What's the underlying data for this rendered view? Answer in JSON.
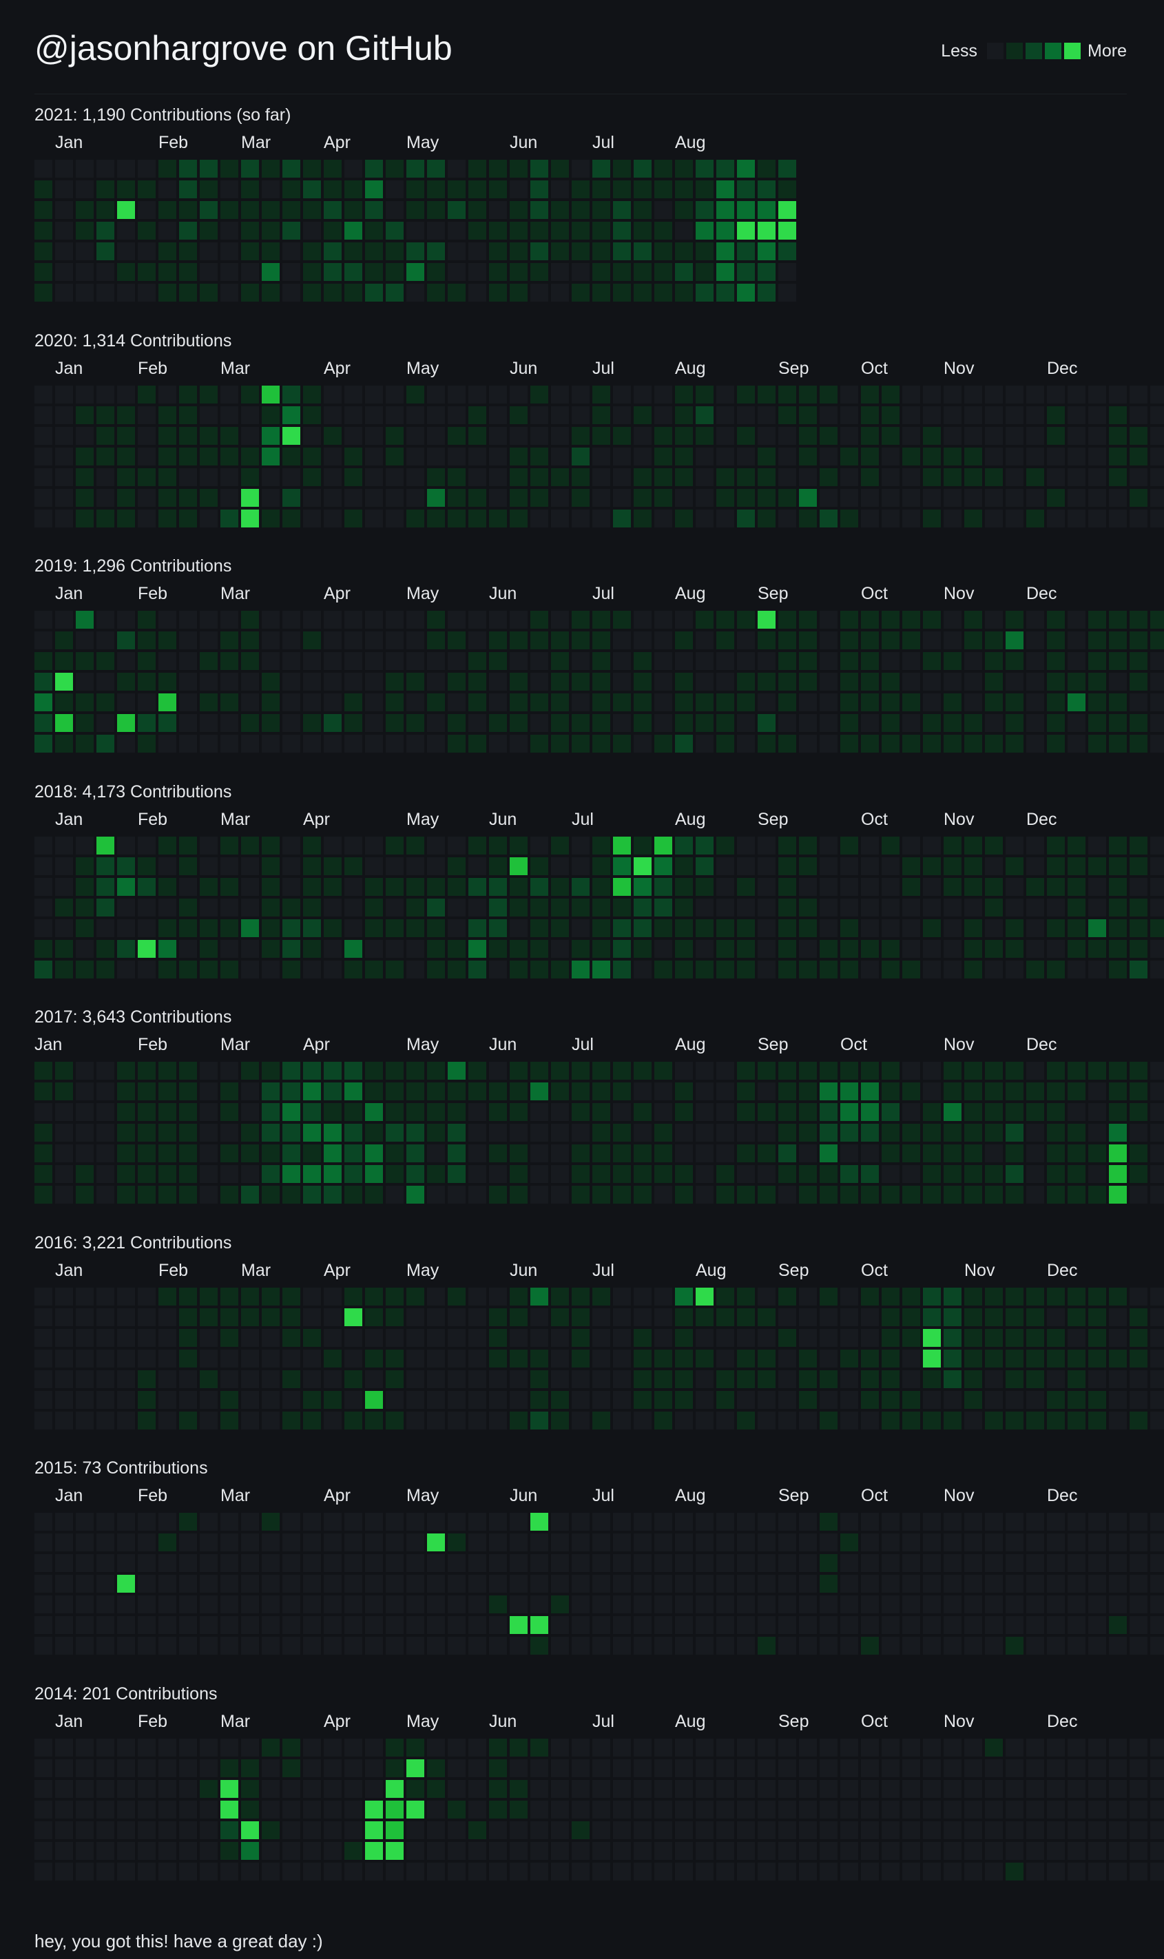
{
  "header": {
    "title": "@jasonhargrove on GitHub",
    "legend": {
      "less": "Less",
      "more": "More"
    }
  },
  "colors": {
    "background": "#111317",
    "levels": [
      "#171a1f",
      "#0c2d1a",
      "#0a4625",
      "#087031",
      "#1fc03a",
      "#2fda4a"
    ]
  },
  "years": [
    {
      "title": "2021: 1,190 Contributions (so far)",
      "months": [
        {
          "label": "Jan",
          "week": 1
        },
        {
          "label": "Feb",
          "week": 6
        },
        {
          "label": "Mar",
          "week": 10
        },
        {
          "label": "Apr",
          "week": 14
        },
        {
          "label": "May",
          "week": 18
        },
        {
          "label": "Jun",
          "week": 23
        },
        {
          "label": "Jul",
          "week": 27
        },
        {
          "label": "Aug",
          "week": 31
        }
      ],
      "weeks": [
        "0111111",
        "0000000",
        "0011000",
        "0112200",
        "0150010",
        "0101010",
        "1010111",
        "2212111",
        "2121001",
        "1010000",
        "2111101",
        "1011131",
        "2112000",
        "1210111",
        "1121221",
        "0113121",
        "2321112",
        "1002112",
        "2110230",
        "2110211",
        "0120001",
        "1111000",
        "1101111",
        "1011111",
        "2221210",
        "1011100",
        "0111101",
        "2111111",
        "1122211",
        "2111211",
        "1101111",
        "1110121",
        "2123112",
        "2333332",
        "3235223",
        "1235322",
        "2155200"
      ]
    },
    {
      "title": "2020: 1,314 Contributions",
      "months": [
        {
          "label": "Jan",
          "week": 1
        },
        {
          "label": "Feb",
          "week": 5
        },
        {
          "label": "Mar",
          "week": 9
        },
        {
          "label": "Apr",
          "week": 14
        },
        {
          "label": "May",
          "week": 18
        },
        {
          "label": "Jun",
          "week": 23
        },
        {
          "label": "Jul",
          "week": 27
        },
        {
          "label": "Aug",
          "week": 31
        },
        {
          "label": "Sep",
          "week": 36
        },
        {
          "label": "Oct",
          "week": 40
        },
        {
          "label": "Nov",
          "week": 44
        },
        {
          "label": "Dec",
          "week": 49
        }
      ],
      "weeks": [
        "0000000",
        "0000000",
        "0101111",
        "0111001",
        "0111111",
        "1000100",
        "0111111",
        "1111011",
        "1011010",
        "0011002",
        "1001155",
        "4133001",
        "2351021",
        "1101100",
        "0010000",
        "0001101",
        "0000000",
        "0011000",
        "1000001",
        "0000131",
        "0010111",
        "0110011",
        "0000001",
        "0101111",
        "1001110",
        "0000100",
        "0012110",
        "1110000",
        "0010002",
        "0100111",
        "0011110",
        "1111101",
        "1210000",
        "0000110",
        "1010112",
        "1001111",
        "1100010",
        "1111031",
        "1010102",
        "0001001",
        "1111100",
        "1110000",
        "0001000",
        "0011101",
        "0001100",
        "0001101",
        "0000100",
        "0000000",
        "0000101",
        "0110010",
        "0000000",
        "0000000",
        "0111100",
        "0011010",
        "0000000"
      ]
    },
    {
      "title": "2019: 1,296 Contributions",
      "months": [
        {
          "label": "Jan",
          "week": 1
        },
        {
          "label": "Feb",
          "week": 5
        },
        {
          "label": "Mar",
          "week": 9
        },
        {
          "label": "Apr",
          "week": 14
        },
        {
          "label": "May",
          "week": 18
        },
        {
          "label": "Jun",
          "week": 22
        },
        {
          "label": "Jul",
          "week": 27
        },
        {
          "label": "Aug",
          "week": 31
        },
        {
          "label": "Sep",
          "week": 35
        },
        {
          "label": "Oct",
          "week": 40
        },
        {
          "label": "Nov",
          "week": 44
        },
        {
          "label": "Dec",
          "week": 48
        }
      ],
      "weeks": [
        "0012322",
        "0115141",
        "3010111",
        "0010102",
        "0201040",
        "1111021",
        "0101420",
        "0000000",
        "0010100",
        "0110100",
        "1110010",
        "0001110",
        "0000000",
        "0100010",
        "0000020",
        "0000110",
        "0000000",
        "0001110",
        "0001010",
        "1100100",
        "0101011",
        "0011101",
        "0110010",
        "0101110",
        "1100101",
        "0111111",
        "1101011",
        "1111111",
        "1000101",
        "0011110",
        "0000001",
        "0101112",
        "1000110",
        "1100111",
        "1001100",
        "5101021",
        "1111101",
        "1111000",
        "0000000",
        "1111111",
        "1111101",
        "1101111",
        "1100101",
        "1010011",
        "0010111",
        "1100011",
        "0111101",
        "1310111",
        "0000000",
        "1111111",
        "0001300",
        "1111111",
        "1110111",
        "1111011",
        "1100000"
      ]
    },
    {
      "title": "2018: 4,173 Contributions",
      "months": [
        {
          "label": "Jan",
          "week": 1
        },
        {
          "label": "Feb",
          "week": 5
        },
        {
          "label": "Mar",
          "week": 9
        },
        {
          "label": "Apr",
          "week": 13
        },
        {
          "label": "May",
          "week": 18
        },
        {
          "label": "Jun",
          "week": 22
        },
        {
          "label": "Jul",
          "week": 26
        },
        {
          "label": "Aug",
          "week": 31
        },
        {
          "label": "Sep",
          "week": 35
        },
        {
          "label": "Oct",
          "week": 40
        },
        {
          "label": "Nov",
          "week": 44
        },
        {
          "label": "Dec",
          "week": 48
        }
      ],
      "weeks": [
        "0000012",
        "0001011",
        "0111101",
        "4222011",
        "0230020",
        "0120050",
        "1010131",
        "1101101",
        "0010111",
        "1010101",
        "1000300",
        "1111110",
        "0001221",
        "1111210",
        "0110100",
        "0100031",
        "0011101",
        "1010101",
        "1011100",
        "0012111",
        "0110011",
        "1020232",
        "1122210",
        "1411011",
        "0121111",
        "1011101",
        "0021013",
        "1111113",
        "4341222",
        "1532210",
        "4322101",
        "2111111",
        "2210101",
        "1000111",
        "0010111",
        "0000000",
        "1111111",
        "1101101",
        "0000011",
        "1000111",
        "0000010",
        "1000011",
        "0110001",
        "0100100",
        "1110000",
        "1110111",
        "1011010",
        "0100110",
        "0010001",
        "1110101",
        "1111110",
        "0100310",
        "1111111",
        "1101112",
        "0000100"
      ]
    },
    {
      "title": "2017: 3,643 Contributions",
      "months": [
        {
          "label": "Jan",
          "week": 0
        },
        {
          "label": "Feb",
          "week": 5
        },
        {
          "label": "Mar",
          "week": 9
        },
        {
          "label": "Apr",
          "week": 13
        },
        {
          "label": "May",
          "week": 18
        },
        {
          "label": "Jun",
          "week": 22
        },
        {
          "label": "Jul",
          "week": 26
        },
        {
          "label": "Aug",
          "week": 31
        },
        {
          "label": "Sep",
          "week": 35
        },
        {
          "label": "Oct",
          "week": 39
        },
        {
          "label": "Nov",
          "week": 44
        },
        {
          "label": "Dec",
          "week": 48
        }
      ],
      "weeks": [
        "1101111",
        "1100000",
        "0000011",
        "0000000",
        "1111111",
        "1111111",
        "1111111",
        "1111111",
        "0000000",
        "0110101",
        "1001102",
        "1222121",
        "2232231",
        "2323132",
        "2213332",
        "2312221",
        "1131331",
        "1112110",
        "1112223",
        "1111010",
        "3112220",
        "1100000",
        "0110101",
        "1110111",
        "1300000",
        "1100000",
        "1110111",
        "1111111",
        "1101111",
        "1010111",
        "1001110",
        "0110011",
        "0000000",
        "0000011",
        "1110101",
        "1010101",
        "1111210",
        "1111011",
        "1322311",
        "1332021",
        "1332021",
        "1121101",
        "0101101",
        "0011111",
        "1131111",
        "1111111",
        "1111011",
        "1112121",
        "0110000",
        "1111111",
        "1101111",
        "1000101",
        "1113444",
        "1110110",
        "0000000"
      ]
    },
    {
      "title": "2016: 3,221 Contributions",
      "months": [
        {
          "label": "Jan",
          "week": 1
        },
        {
          "label": "Feb",
          "week": 6
        },
        {
          "label": "Mar",
          "week": 10
        },
        {
          "label": "Apr",
          "week": 14
        },
        {
          "label": "May",
          "week": 18
        },
        {
          "label": "Jun",
          "week": 23
        },
        {
          "label": "Jul",
          "week": 27
        },
        {
          "label": "Aug",
          "week": 32
        },
        {
          "label": "Sep",
          "week": 36
        },
        {
          "label": "Oct",
          "week": 40
        },
        {
          "label": "Nov",
          "week": 45
        },
        {
          "label": "Dec",
          "week": 49
        }
      ],
      "weeks": [
        "0000000",
        "0000000",
        "0000000",
        "0000000",
        "0000000",
        "0000111",
        "1000000",
        "1111001",
        "1100100",
        "1110011",
        "1100000",
        "1100000",
        "1110101",
        "0010011",
        "0001010",
        "1500101",
        "1101041",
        "1101101",
        "1000000",
        "0000000",
        "1000000",
        "0000000",
        "0111000",
        "1101001",
        "3001112",
        "1100011",
        "1111000",
        "1000001",
        "0000000",
        "0011110",
        "0001111",
        "3111110",
        "5101000",
        "1100110",
        "1101101",
        "0101100",
        "1010000",
        "0001110",
        "1000101",
        "0001000",
        "1001110",
        "1111111",
        "1110011",
        "2255101",
        "2222201",
        "1111110",
        "1111001",
        "1111101",
        "1111101",
        "1011011",
        "1101111",
        "1111011",
        "1001000",
        "0111001",
        "0000000"
      ]
    },
    {
      "title": "2015: 73 Contributions",
      "months": [
        {
          "label": "Jan",
          "week": 1
        },
        {
          "label": "Feb",
          "week": 5
        },
        {
          "label": "Mar",
          "week": 9
        },
        {
          "label": "Apr",
          "week": 14
        },
        {
          "label": "May",
          "week": 18
        },
        {
          "label": "Jun",
          "week": 23
        },
        {
          "label": "Jul",
          "week": 27
        },
        {
          "label": "Aug",
          "week": 31
        },
        {
          "label": "Sep",
          "week": 36
        },
        {
          "label": "Oct",
          "week": 40
        },
        {
          "label": "Nov",
          "week": 44
        },
        {
          "label": "Dec",
          "week": 49
        }
      ],
      "weeks": [
        "0000000",
        "0000000",
        "0000000",
        "0000000",
        "0005000",
        "0000000",
        "0100000",
        "1000000",
        "0000000",
        "0000000",
        "0000000",
        "1000000",
        "0000000",
        "0000000",
        "0000000",
        "0000000",
        "0000000",
        "0000000",
        "0000000",
        "0500000",
        "0100000",
        "0000000",
        "0000100",
        "0000050",
        "5000051",
        "0000100",
        "0000000",
        "0000000",
        "0000000",
        "0000000",
        "0000000",
        "0000000",
        "0000000",
        "0000000",
        "0000000",
        "0000001",
        "0000000",
        "0000000",
        "1011000",
        "0100000",
        "0000001",
        "0000000",
        "0000000",
        "0000000",
        "0000000",
        "0000000",
        "0000000",
        "0000001",
        "0000000",
        "0000000",
        "0000000",
        "0000000",
        "0000010",
        "0000000",
        "0000000"
      ]
    },
    {
      "title": "2014: 201 Contributions",
      "months": [
        {
          "label": "Jan",
          "week": 1
        },
        {
          "label": "Feb",
          "week": 5
        },
        {
          "label": "Mar",
          "week": 9
        },
        {
          "label": "Apr",
          "week": 14
        },
        {
          "label": "May",
          "week": 18
        },
        {
          "label": "Jun",
          "week": 22
        },
        {
          "label": "Jul",
          "week": 27
        },
        {
          "label": "Aug",
          "week": 31
        },
        {
          "label": "Sep",
          "week": 36
        },
        {
          "label": "Oct",
          "week": 40
        },
        {
          "label": "Nov",
          "week": 44
        },
        {
          "label": "Dec",
          "week": 49
        }
      ],
      "weeks": [
        "0000000",
        "0000000",
        "0000000",
        "0000000",
        "0000000",
        "0000000",
        "0000000",
        "0000000",
        "0010000",
        "0155210",
        "0111530",
        "1000100",
        "1100000",
        "0000000",
        "0000000",
        "0000010",
        "0005550",
        "1154450",
        "1515000",
        "0110000",
        "0001000",
        "0000100",
        "1111000",
        "1011000",
        "1000000",
        "0000000",
        "0000100",
        "0000000",
        "0000000",
        "0000000",
        "0000000",
        "0000000",
        "0000000",
        "0000000",
        "0000000",
        "0000000",
        "0000000",
        "0000000",
        "0000000",
        "0000000",
        "0000000",
        "0000000",
        "0000000",
        "0000000",
        "0000000",
        "0000000",
        "1000000",
        "0000001",
        "0000000",
        "0000000",
        "0000000",
        "0000000",
        "0000000",
        "0000000",
        "0000000"
      ]
    }
  ],
  "footer": {
    "text": "hey, you got this! have a great day :)"
  }
}
